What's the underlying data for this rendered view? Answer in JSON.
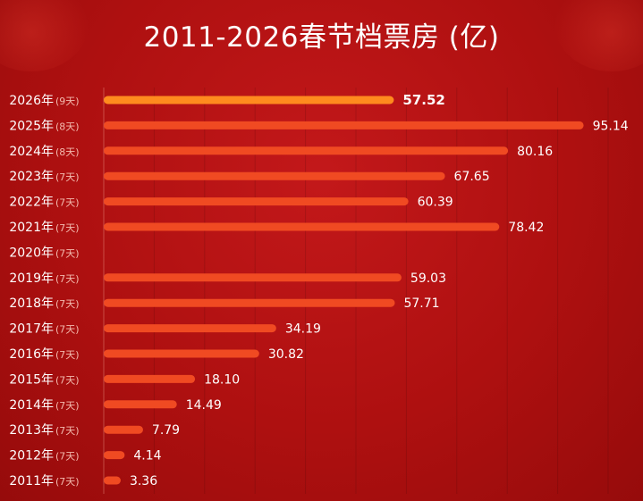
{
  "title": "2011-2026春节档票房 (亿)",
  "colors": {
    "background": "#b3120f",
    "bar": "#f04a22",
    "bar_highlight": "#ff8a1e",
    "text": "#ffffff",
    "days_text": "#f3b9ad"
  },
  "chart_data": {
    "type": "bar",
    "orientation": "horizontal",
    "title": "2011-2026春节档票房 (亿)",
    "xlim": [
      0,
      100
    ],
    "grid": true,
    "legend": "none",
    "highlight_index": 0,
    "categories": [
      "2026年",
      "2025年",
      "2024年",
      "2023年",
      "2022年",
      "2021年",
      "2020年",
      "2019年",
      "2018年",
      "2017年",
      "2016年",
      "2015年",
      "2014年",
      "2013年",
      "2012年",
      "2011年"
    ],
    "days": [
      "(9天)",
      "(8天)",
      "(8天)",
      "(7天)",
      "(7天)",
      "(7天)",
      "(7天)",
      "(7天)",
      "(7天)",
      "(7天)",
      "(7天)",
      "(7天)",
      "(7天)",
      "(7天)",
      "(7天)",
      "(7天)"
    ],
    "values": [
      57.52,
      95.14,
      80.16,
      67.65,
      60.39,
      78.42,
      null,
      59.03,
      57.71,
      34.19,
      30.82,
      18.1,
      14.49,
      7.79,
      4.14,
      3.36
    ],
    "value_labels": [
      "57.52",
      "95.14",
      "80.16",
      "67.65",
      "60.39",
      "78.42",
      "",
      "59.03",
      "57.71",
      "34.19",
      "30.82",
      "18.10",
      "14.49",
      "7.79",
      "4.14",
      "3.36"
    ]
  }
}
